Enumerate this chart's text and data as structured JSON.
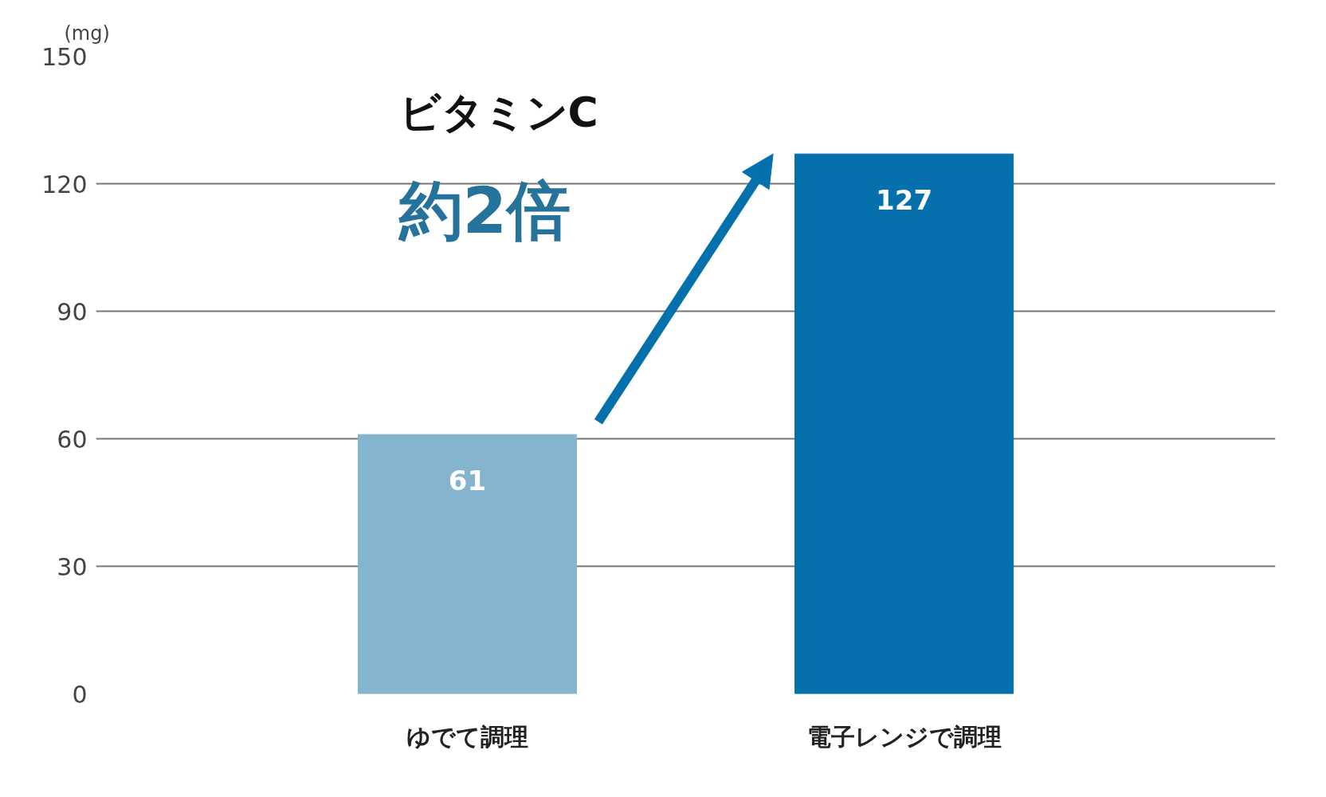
{
  "chart_data": {
    "type": "bar",
    "title": "ビタミンC",
    "ylabel": "(mg)",
    "annotations": [
      "約2倍"
    ],
    "categories": [
      "ゆでて調理",
      "電子レンジで調理"
    ],
    "values": [
      61,
      127
    ],
    "colors": [
      "#85b4cf",
      "#0570ab"
    ],
    "ylim": [
      0,
      150
    ],
    "yticks": [
      0,
      30,
      60,
      90,
      120,
      150
    ],
    "grid": "y",
    "data_labels": true
  }
}
